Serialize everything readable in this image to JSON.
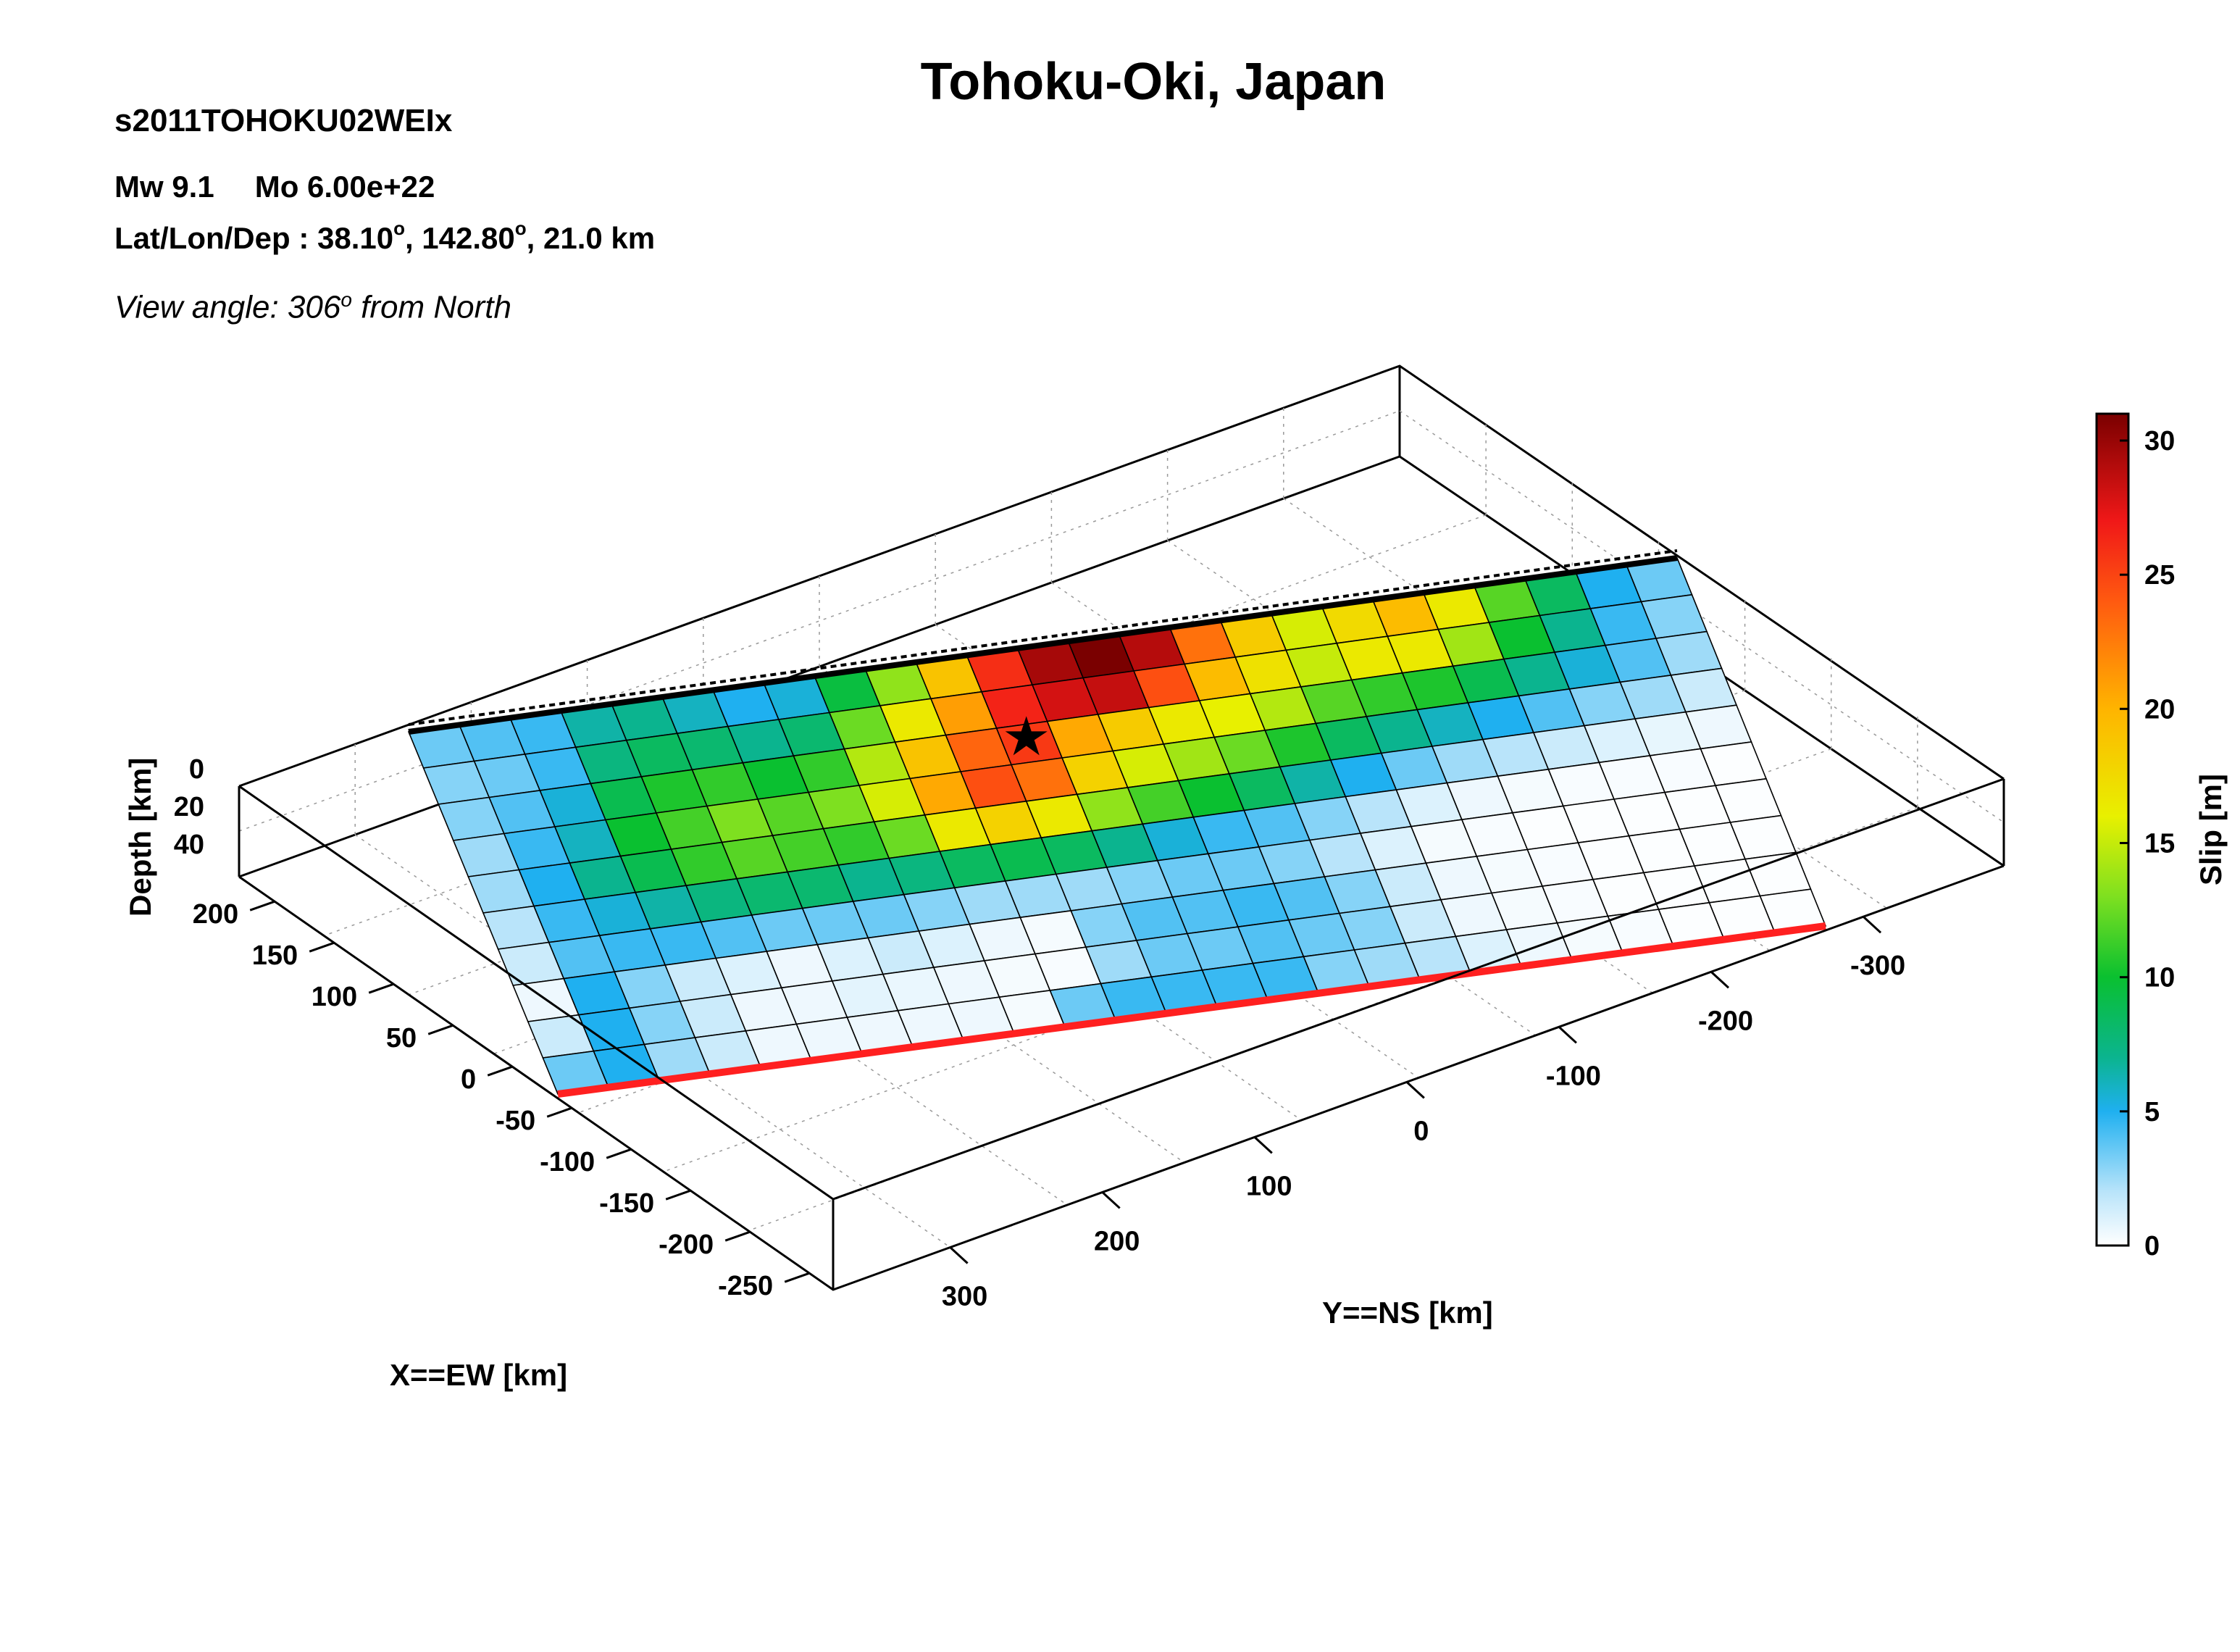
{
  "header": {
    "title": "Tohoku-Oki, Japan",
    "model_id": "s2011TOHOKU02WEIx",
    "mw": "Mw 9.1",
    "mo": "Mo 6.00e+22",
    "location_label": "Lat/Lon/Dep : 38.10",
    "location_lon": ", 142.80",
    "location_dep": ", 21.0 km",
    "degree_symbol": "o",
    "view_prefix": "View angle: 306",
    "view_suffix": " from North"
  },
  "colors": {
    "top_edge": "#000000",
    "bottom_edge": "#ff2020",
    "epicenter": "#000000"
  },
  "chart_data": {
    "type": "heatmap",
    "title": "Tohoku-Oki, Japan",
    "x_label": "X==EW [km]",
    "y_label": "Y==NS [km]",
    "z_label": "Depth [km]",
    "colorbar_label": "Slip [m]",
    "x_ticks": [
      "200",
      "150",
      "100",
      "50",
      "0",
      "-50",
      "-100",
      "-150",
      "-200",
      "-250"
    ],
    "y_ticks": [
      "-300",
      "-200",
      "-100",
      "0",
      "100",
      "200",
      "300"
    ],
    "z_ticks": [
      "0",
      "20",
      "40"
    ],
    "colorbar_ticks": [
      "0",
      "5",
      "10",
      "15",
      "20",
      "25",
      "30"
    ],
    "colorbar_range": [
      0,
      31
    ],
    "colormap_stops": [
      [
        0,
        "#ffffff"
      ],
      [
        2,
        "#b9e4fa"
      ],
      [
        5,
        "#1fb0f0"
      ],
      [
        7,
        "#0bb48f"
      ],
      [
        10,
        "#0ac030"
      ],
      [
        13,
        "#7ee020"
      ],
      [
        16,
        "#e8f000"
      ],
      [
        20,
        "#ffb400"
      ],
      [
        24,
        "#ff5a10"
      ],
      [
        27,
        "#f01818"
      ],
      [
        31,
        "#7a0000"
      ]
    ],
    "grid": true,
    "epicenter": {
      "col": 11,
      "row": 2
    },
    "slip_columns": 25,
    "slip_rows": 10,
    "slip_row_order": "row 0 = top edge (black, shallow), row 9 = bottom edge (red, deep); column 0 = left (+NS)",
    "slip": [
      [
        3.5,
        4.0,
        4.5,
        6.5,
        7.0,
        6.0,
        5.0,
        5.5,
        9.5,
        13.5,
        19.0,
        26.0,
        29.5,
        31.0,
        29.0,
        23.0,
        18.5,
        15.5,
        17.5,
        19.5,
        16.5,
        12.0,
        8.5,
        5.0,
        3.5
      ],
      [
        3.0,
        3.5,
        4.5,
        7.5,
        8.5,
        8.0,
        7.0,
        8.0,
        12.5,
        16.5,
        21.0,
        26.5,
        28.0,
        28.5,
        24.5,
        19.5,
        17.0,
        15.0,
        16.5,
        16.5,
        14.0,
        10.0,
        7.0,
        4.5,
        3.0
      ],
      [
        3.0,
        4.0,
        5.5,
        9.0,
        10.5,
        11.0,
        10.0,
        11.0,
        14.5,
        19.0,
        23.5,
        25.5,
        20.5,
        18.5,
        16.5,
        16.0,
        14.5,
        12.0,
        11.0,
        10.5,
        9.0,
        7.0,
        5.5,
        4.0,
        2.5
      ],
      [
        2.5,
        4.5,
        6.0,
        10.0,
        11.5,
        13.0,
        12.0,
        13.0,
        15.5,
        20.5,
        24.5,
        23.0,
        18.0,
        15.5,
        14.0,
        12.5,
        10.5,
        8.5,
        7.0,
        6.0,
        5.0,
        4.0,
        3.0,
        2.5,
        1.5
      ],
      [
        2.5,
        5.0,
        7.0,
        9.0,
        11.0,
        12.0,
        11.5,
        11.0,
        12.5,
        16.5,
        18.0,
        16.5,
        13.5,
        11.5,
        10.0,
        8.5,
        6.5,
        5.0,
        3.5,
        2.5,
        2.0,
        1.5,
        1.0,
        0.7,
        0.5
      ],
      [
        2.0,
        4.5,
        5.5,
        6.5,
        7.5,
        8.0,
        8.0,
        7.0,
        7.5,
        8.5,
        9.0,
        8.5,
        7.0,
        5.5,
        4.5,
        4.0,
        3.0,
        2.0,
        1.0,
        0.5,
        0.3,
        0.2,
        0.2,
        0.2,
        0.1
      ],
      [
        1.5,
        4.0,
        4.5,
        4.5,
        4.0,
        3.5,
        3.5,
        3.5,
        3.0,
        2.5,
        2.5,
        2.5,
        3.0,
        3.5,
        3.5,
        3.0,
        2.0,
        1.0,
        0.3,
        0.2,
        0.1,
        0.1,
        0.1,
        0.1,
        0.1
      ],
      [
        0.5,
        5.0,
        3.0,
        1.5,
        1.0,
        0.5,
        1.0,
        1.5,
        1.0,
        0.5,
        0.3,
        3.0,
        4.0,
        4.0,
        4.5,
        4.0,
        3.0,
        1.5,
        0.5,
        0.3,
        0.2,
        0.1,
        0.1,
        0.1,
        0.1
      ],
      [
        1.5,
        5.0,
        3.0,
        1.5,
        0.5,
        0.5,
        0.8,
        0.6,
        0.5,
        0.3,
        0.2,
        2.5,
        3.5,
        3.5,
        4.0,
        3.5,
        3.0,
        1.5,
        0.5,
        0.3,
        0.2,
        0.1,
        0.1,
        0.1,
        0.1
      ],
      [
        3.5,
        5.0,
        2.5,
        1.5,
        0.5,
        0.5,
        0.5,
        0.5,
        0.5,
        0.3,
        3.5,
        4.5,
        4.5,
        4.5,
        4.5,
        3.0,
        2.5,
        2.0,
        1.0,
        0.5,
        0.3,
        0.2,
        0.1,
        0.1,
        0.1
      ]
    ]
  }
}
